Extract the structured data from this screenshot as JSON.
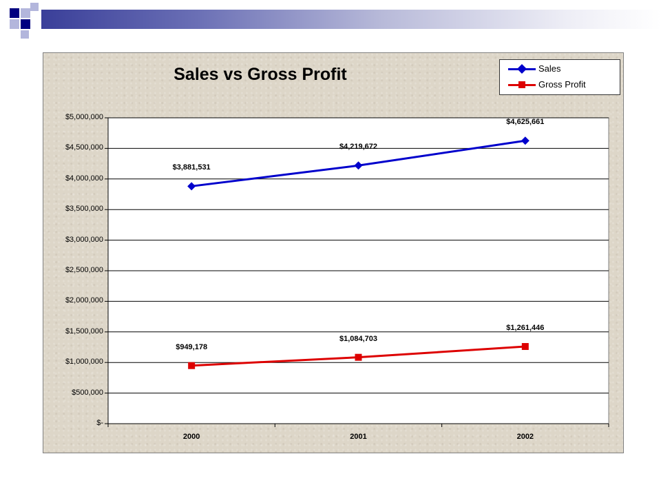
{
  "slide": {
    "header_accent": "#000080"
  },
  "chart_data": {
    "type": "line",
    "title": "Sales vs Gross Profit",
    "xlabel": "",
    "ylabel": "",
    "categories": [
      "2000",
      "2001",
      "2002"
    ],
    "ylim": [
      0,
      5000000
    ],
    "yticks": [
      0,
      500000,
      1000000,
      1500000,
      2000000,
      2500000,
      3000000,
      3500000,
      4000000,
      4500000,
      5000000
    ],
    "ytick_labels": [
      "$-",
      "$500,000",
      "$1,000,000",
      "$1,500,000",
      "$2,000,000",
      "$2,500,000",
      "$3,000,000",
      "$3,500,000",
      "$4,000,000",
      "$4,500,000",
      "$5,000,000"
    ],
    "grid": true,
    "legend": "top-right",
    "series": [
      {
        "name": "Sales",
        "values": [
          3881531,
          4219672,
          4625661
        ],
        "labels": [
          "$3,881,531",
          "$4,219,672",
          "$4,625,661"
        ],
        "color": "#0000cc",
        "marker": "diamond"
      },
      {
        "name": "Gross Profit",
        "values": [
          949178,
          1084703,
          1261446
        ],
        "labels": [
          "$949,178",
          "$1,084,703",
          "$1,261,446"
        ],
        "color": "#dd0000",
        "marker": "square"
      }
    ]
  }
}
